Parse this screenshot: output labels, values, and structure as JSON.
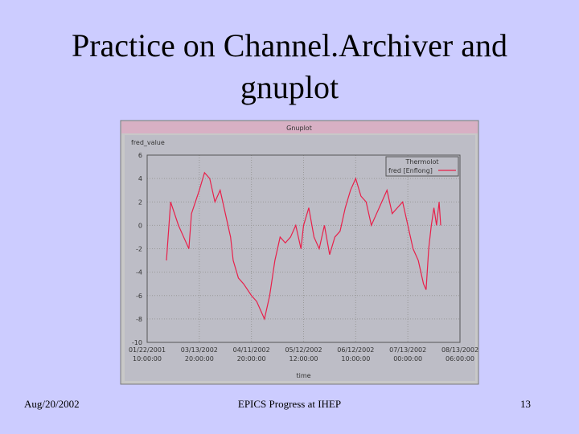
{
  "slide_title": [
    "Practice on Channel.Archiver and",
    "gnuplot"
  ],
  "window_title": "Gnuplot",
  "footer": {
    "left": "Aug/20/2002",
    "center": "EPICS Progress at IHEP",
    "right": "13"
  },
  "chart_data": {
    "type": "line",
    "ylabel": "fred_value",
    "xlabel": "time",
    "legend_title": "Thermolot",
    "x": [
      0.37,
      0.45,
      0.6,
      0.7,
      0.8,
      0.85,
      1.0,
      1.1,
      1.2,
      1.3,
      1.4,
      1.5,
      1.6,
      1.65,
      1.75,
      1.85,
      2.0,
      2.1,
      2.2,
      2.25,
      2.35,
      2.45,
      2.55,
      2.65,
      2.75,
      2.85,
      2.95,
      3.0,
      3.1,
      3.2,
      3.3,
      3.4,
      3.5,
      3.6,
      3.7,
      3.8,
      3.9,
      4.0,
      4.1,
      4.2,
      4.3,
      4.4,
      4.5,
      4.6,
      4.7,
      4.8,
      4.9,
      5.0,
      5.1,
      5.2,
      5.3,
      5.35,
      5.4,
      5.45,
      5.5,
      5.55,
      5.6,
      5.63
    ],
    "series": [
      {
        "name": "fred [Enflong]",
        "color": "#e8204a",
        "values": [
          -3,
          2,
          0,
          -1,
          -2,
          1,
          3,
          4.5,
          4,
          2,
          3,
          1,
          -1,
          -3,
          -4.5,
          -5,
          -6,
          -6.5,
          -7.5,
          -8,
          -6,
          -3,
          -1,
          -1.5,
          -1,
          0,
          -2,
          0,
          1.5,
          -1,
          -2,
          0,
          -2.5,
          -1,
          -0.5,
          1.5,
          3,
          4,
          2.5,
          2,
          0,
          1,
          2,
          3,
          1,
          1.5,
          2,
          0,
          -2,
          -3,
          -5,
          -5.5,
          -2,
          0,
          1.5,
          0,
          2,
          0
        ]
      }
    ],
    "xlim": [
      0,
      6
    ],
    "xticks": [
      {
        "value": 0,
        "label": [
          "01/22/2001",
          "10:00:00"
        ]
      },
      {
        "value": 1,
        "label": [
          "03/13/2002",
          "20:00:00"
        ]
      },
      {
        "value": 2,
        "label": [
          "04/11/2002",
          "20:00:00"
        ]
      },
      {
        "value": 3,
        "label": [
          "05/12/2002",
          "12:00:00"
        ]
      },
      {
        "value": 4,
        "label": [
          "06/12/2002",
          "10:00:00"
        ]
      },
      {
        "value": 5,
        "label": [
          "07/13/2002",
          "00:00:00"
        ]
      },
      {
        "value": 6,
        "label": [
          "08/13/2002",
          "06:00:00"
        ]
      }
    ],
    "ylim": [
      -10,
      6
    ],
    "yticks": [
      6,
      4,
      2,
      0,
      -2,
      -4,
      -6,
      -8,
      -10
    ],
    "grid": true
  }
}
